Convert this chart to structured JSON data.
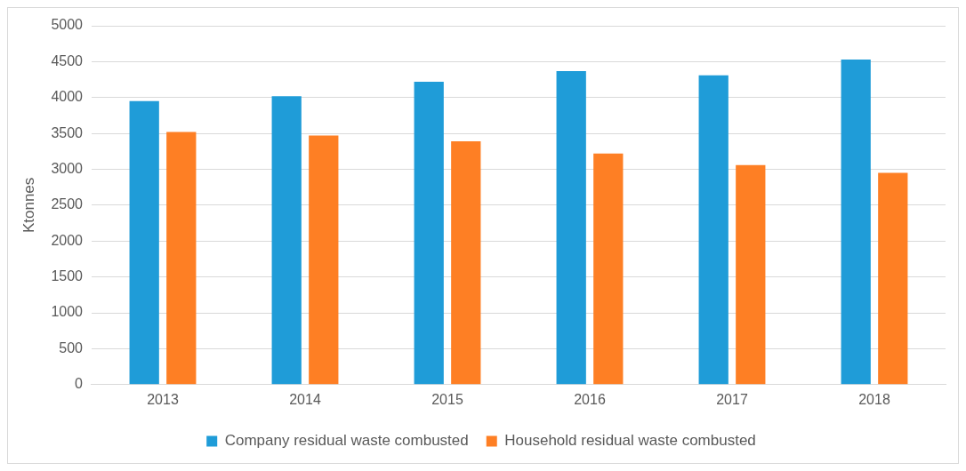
{
  "chart_data": {
    "type": "bar",
    "ylabel": "Ktonnes",
    "categories": [
      "2013",
      "2014",
      "2015",
      "2016",
      "2017",
      "2018"
    ],
    "series": [
      {
        "name": "Company residual waste combusted",
        "color": "#1f9cd8",
        "values": [
          3950,
          4020,
          4220,
          4370,
          4310,
          4530
        ]
      },
      {
        "name": "Household residual waste combusted",
        "color": "#fe7f24",
        "values": [
          3520,
          3470,
          3390,
          3220,
          3060,
          2950
        ]
      }
    ],
    "ylim": [
      0,
      5000
    ],
    "yticks": [
      0,
      500,
      1000,
      1500,
      2000,
      2500,
      3000,
      3500,
      4000,
      4500,
      5000
    ],
    "grid": "y",
    "legend": "bottom"
  }
}
